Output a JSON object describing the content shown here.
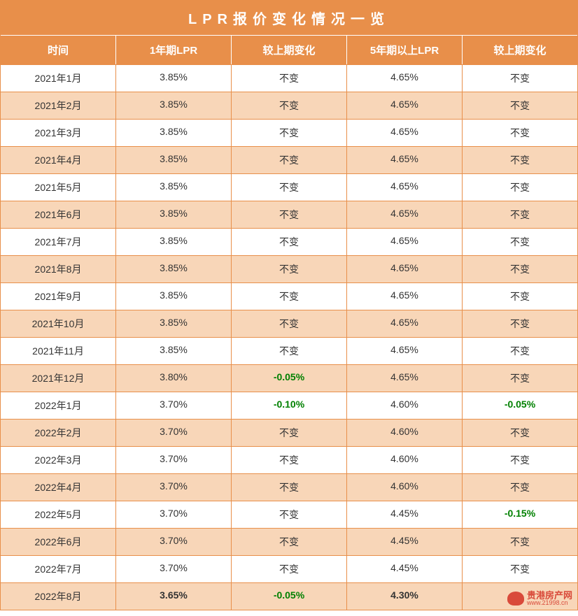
{
  "table": {
    "title": "LPR报价变化情况一览",
    "title_bg": "#e88f4a",
    "title_color": "#ffffff",
    "title_fontsize": 20,
    "header_bg": "#e88f4a",
    "header_color": "#ffffff",
    "odd_row_bg": "#f8d6b8",
    "even_row_bg": "#ffffff",
    "border_color": "#e88f4a",
    "highlight_color": "#008000",
    "text_color": "#333333",
    "columns": [
      "时间",
      "1年期LPR",
      "较上期变化",
      "5年期以上LPR",
      "较上期变化"
    ],
    "rows": [
      {
        "cells": [
          "2021年1月",
          "3.85%",
          "不变",
          "4.65%",
          "不变"
        ],
        "highlights": [],
        "bolds": []
      },
      {
        "cells": [
          "2021年2月",
          "3.85%",
          "不变",
          "4.65%",
          "不变"
        ],
        "highlights": [],
        "bolds": []
      },
      {
        "cells": [
          "2021年3月",
          "3.85%",
          "不变",
          "4.65%",
          "不变"
        ],
        "highlights": [],
        "bolds": []
      },
      {
        "cells": [
          "2021年4月",
          "3.85%",
          "不变",
          "4.65%",
          "不变"
        ],
        "highlights": [],
        "bolds": []
      },
      {
        "cells": [
          "2021年5月",
          "3.85%",
          "不变",
          "4.65%",
          "不变"
        ],
        "highlights": [],
        "bolds": []
      },
      {
        "cells": [
          "2021年6月",
          "3.85%",
          "不变",
          "4.65%",
          "不变"
        ],
        "highlights": [],
        "bolds": []
      },
      {
        "cells": [
          "2021年7月",
          "3.85%",
          "不变",
          "4.65%",
          "不变"
        ],
        "highlights": [],
        "bolds": []
      },
      {
        "cells": [
          "2021年8月",
          "3.85%",
          "不变",
          "4.65%",
          "不变"
        ],
        "highlights": [],
        "bolds": []
      },
      {
        "cells": [
          "2021年9月",
          "3.85%",
          "不变",
          "4.65%",
          "不变"
        ],
        "highlights": [],
        "bolds": []
      },
      {
        "cells": [
          "2021年10月",
          "3.85%",
          "不变",
          "4.65%",
          "不变"
        ],
        "highlights": [],
        "bolds": []
      },
      {
        "cells": [
          "2021年11月",
          "3.85%",
          "不变",
          "4.65%",
          "不变"
        ],
        "highlights": [],
        "bolds": []
      },
      {
        "cells": [
          "2021年12月",
          "3.80%",
          "-0.05%",
          "4.65%",
          "不变"
        ],
        "highlights": [
          2
        ],
        "bolds": []
      },
      {
        "cells": [
          "2022年1月",
          "3.70%",
          "-0.10%",
          "4.60%",
          "-0.05%"
        ],
        "highlights": [
          2,
          4
        ],
        "bolds": []
      },
      {
        "cells": [
          "2022年2月",
          "3.70%",
          "不变",
          "4.60%",
          "不变"
        ],
        "highlights": [],
        "bolds": []
      },
      {
        "cells": [
          "2022年3月",
          "3.70%",
          "不变",
          "4.60%",
          "不变"
        ],
        "highlights": [],
        "bolds": []
      },
      {
        "cells": [
          "2022年4月",
          "3.70%",
          "不变",
          "4.60%",
          "不变"
        ],
        "highlights": [],
        "bolds": []
      },
      {
        "cells": [
          "2022年5月",
          "3.70%",
          "不变",
          "4.45%",
          "-0.15%"
        ],
        "highlights": [
          4
        ],
        "bolds": []
      },
      {
        "cells": [
          "2022年6月",
          "3.70%",
          "不变",
          "4.45%",
          "不变"
        ],
        "highlights": [],
        "bolds": []
      },
      {
        "cells": [
          "2022年7月",
          "3.70%",
          "不变",
          "4.45%",
          "不变"
        ],
        "highlights": [],
        "bolds": []
      },
      {
        "cells": [
          "2022年8月",
          "3.65%",
          "-0.05%",
          "4.30%",
          ""
        ],
        "highlights": [
          2
        ],
        "bolds": [
          1,
          2,
          3
        ]
      }
    ]
  },
  "watermark": {
    "cn": "贵港房产网",
    "url": "www.21998.cn",
    "color": "#d94a3a"
  }
}
